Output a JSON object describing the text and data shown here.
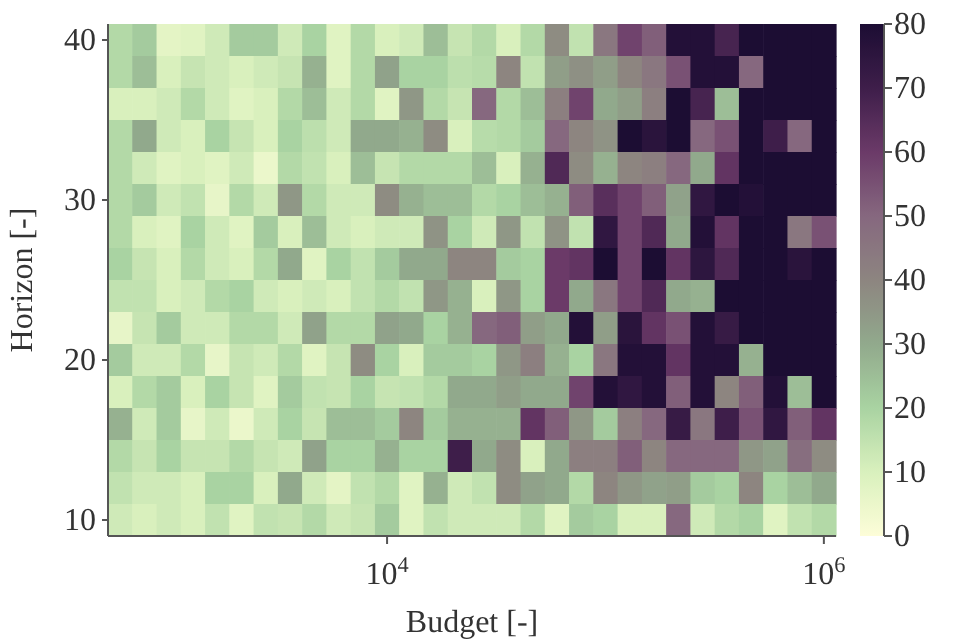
{
  "chart_data": {
    "type": "heatmap",
    "xlabel": "Budget [-]",
    "ylabel": "Horizon [-]",
    "clim": [
      0,
      80
    ],
    "cticks": [
      0,
      10,
      20,
      30,
      40,
      50,
      60,
      70,
      80
    ],
    "categories": [
      null,
      null,
      null,
      null,
      null,
      null,
      null,
      null,
      null,
      null,
      null,
      "10$^{4}$",
      null,
      null,
      null,
      null,
      null,
      null,
      null,
      null,
      null,
      null,
      null,
      null,
      null,
      null,
      null,
      null,
      null,
      "10$^{6}$"
    ],
    "y_categories": [
      "40",
      null,
      null,
      null,
      null,
      "30",
      null,
      null,
      null,
      null,
      "20",
      null,
      null,
      null,
      null,
      "10"
    ],
    "cells": [
      [
        18,
        22,
        7,
        8,
        12,
        22,
        22,
        12,
        20,
        8,
        18,
        10,
        12,
        25,
        14,
        18,
        10,
        18,
        38,
        15,
        45,
        58,
        52,
        78,
        78,
        68,
        80,
        80,
        80,
        80
      ],
      [
        18,
        25,
        10,
        14,
        12,
        10,
        12,
        14,
        28,
        8,
        18,
        32,
        20,
        20,
        16,
        17,
        40,
        15,
        33,
        37,
        33,
        40,
        45,
        55,
        78,
        78,
        50,
        80,
        80,
        80
      ],
      [
        10,
        10,
        12,
        18,
        12,
        8,
        10,
        18,
        25,
        12,
        18,
        8,
        35,
        18,
        14,
        50,
        18,
        25,
        42,
        58,
        30,
        33,
        42,
        80,
        68,
        25,
        80,
        80,
        80,
        80
      ],
      [
        18,
        30,
        12,
        10,
        20,
        14,
        10,
        20,
        16,
        12,
        30,
        30,
        28,
        38,
        10,
        17,
        18,
        22,
        50,
        40,
        36,
        80,
        76,
        80,
        50,
        55,
        80,
        70,
        50,
        80
      ],
      [
        18,
        12,
        8,
        10,
        8,
        12,
        5,
        18,
        15,
        10,
        25,
        14,
        18,
        18,
        18,
        25,
        10,
        28,
        66,
        38,
        28,
        40,
        42,
        50,
        30,
        62,
        80,
        80,
        80,
        80
      ],
      [
        18,
        22,
        12,
        15,
        6,
        18,
        12,
        35,
        18,
        12,
        12,
        38,
        28,
        25,
        25,
        18,
        20,
        25,
        28,
        52,
        64,
        58,
        52,
        32,
        74,
        80,
        78,
        80,
        80,
        80
      ],
      [
        18,
        10,
        8,
        20,
        12,
        8,
        22,
        10,
        25,
        12,
        10,
        12,
        12,
        36,
        20,
        12,
        35,
        15,
        36,
        15,
        74,
        58,
        66,
        30,
        78,
        62,
        80,
        80,
        45,
        55
      ],
      [
        20,
        14,
        10,
        18,
        12,
        10,
        18,
        30,
        8,
        20,
        15,
        22,
        30,
        30,
        40,
        40,
        22,
        20,
        60,
        62,
        80,
        58,
        80,
        62,
        75,
        66,
        80,
        80,
        76,
        80
      ],
      [
        15,
        15,
        10,
        12,
        18,
        20,
        12,
        10,
        12,
        10,
        15,
        18,
        15,
        35,
        28,
        10,
        35,
        20,
        60,
        30,
        45,
        58,
        66,
        30,
        28,
        80,
        80,
        80,
        80,
        80
      ],
      [
        6,
        14,
        22,
        12,
        12,
        18,
        18,
        12,
        32,
        18,
        18,
        32,
        30,
        20,
        28,
        50,
        52,
        33,
        30,
        78,
        33,
        76,
        62,
        55,
        78,
        72,
        80,
        80,
        80,
        80
      ],
      [
        22,
        12,
        12,
        18,
        6,
        14,
        12,
        18,
        8,
        14,
        38,
        20,
        10,
        22,
        22,
        20,
        35,
        42,
        28,
        20,
        45,
        78,
        78,
        62,
        78,
        78,
        28,
        80,
        80,
        80
      ],
      [
        10,
        18,
        22,
        10,
        20,
        14,
        8,
        22,
        15,
        14,
        20,
        14,
        15,
        18,
        30,
        30,
        33,
        30,
        30,
        58,
        78,
        74,
        78,
        52,
        78,
        40,
        52,
        78,
        25,
        80
      ],
      [
        28,
        12,
        22,
        6,
        12,
        5,
        12,
        20,
        14,
        25,
        25,
        22,
        40,
        22,
        28,
        28,
        28,
        62,
        52,
        35,
        22,
        42,
        50,
        72,
        45,
        70,
        55,
        74,
        52,
        62
      ],
      [
        18,
        14,
        20,
        14,
        14,
        18,
        14,
        12,
        32,
        20,
        20,
        28,
        20,
        20,
        70,
        30,
        38,
        10,
        30,
        42,
        42,
        52,
        40,
        50,
        50,
        50,
        35,
        32,
        48,
        38
      ],
      [
        15,
        12,
        12,
        10,
        20,
        20,
        10,
        30,
        12,
        7,
        15,
        18,
        8,
        28,
        12,
        15,
        38,
        32,
        30,
        18,
        40,
        35,
        32,
        33,
        22,
        20,
        40,
        20,
        25,
        30
      ],
      [
        12,
        10,
        12,
        10,
        15,
        8,
        15,
        14,
        18,
        12,
        14,
        22,
        8,
        15,
        12,
        12,
        12,
        18,
        8,
        22,
        20,
        10,
        10,
        50,
        12,
        18,
        20,
        8,
        15,
        18
      ]
    ]
  }
}
